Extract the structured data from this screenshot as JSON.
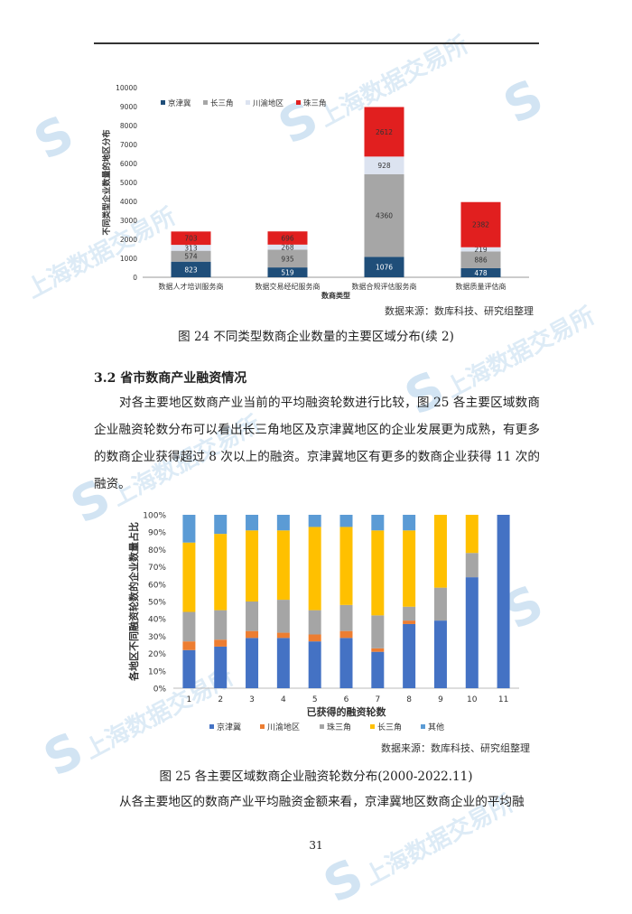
{
  "watermark": {
    "text": "上海数据交易所"
  },
  "chart24": {
    "chart_data": {
      "type": "bar",
      "stacked": true,
      "categories": [
        "数据人才培训服务商",
        "数据交易经纪服务商",
        "数据合规评估服务商",
        "数据质量评估商"
      ],
      "series": [
        {
          "name": "京津冀",
          "color": "#1f4e79",
          "values": [
            823,
            519,
            1076,
            478
          ]
        },
        {
          "name": "长三角",
          "color": "#a6a6a6",
          "values": [
            574,
            935,
            4360,
            886
          ]
        },
        {
          "name": "川渝地区",
          "color": "#dce3f0",
          "values": [
            313,
            268,
            928,
            219
          ]
        },
        {
          "name": "珠三角",
          "color": "#e11f1f",
          "values": [
            703,
            696,
            2612,
            2382
          ]
        }
      ],
      "ylabel": "不同类型企业数量的地区分布",
      "xlabel": "数商类型",
      "ylim": [
        0,
        10000
      ],
      "yticks": [
        "0",
        "1000",
        "2000",
        "3000",
        "4000",
        "5000",
        "6000",
        "7000",
        "8000",
        "9000",
        "10000"
      ],
      "legend_position": "top-left",
      "grid": false
    },
    "source": "数据来源：数库科技、研究组整理",
    "caption": "图 24  不同类型数商企业数量的主要区域分布(续 2)"
  },
  "section_title": "3.2  省市数商产业融资情况",
  "paragraph1": "对各主要地区数商产业当前的平均融资轮数进行比较，图 25 各主要区域数商企业融资轮数分布可以看出长三角地区及京津冀地区的企业发展更为成熟，有更多的数商企业获得超过 8 次以上的融资。京津冀地区有更多的数商企业获得 11 次的融资。",
  "chart25": {
    "chart_data": {
      "type": "bar",
      "stacked": true,
      "percent": true,
      "categories": [
        "1",
        "2",
        "3",
        "4",
        "5",
        "6",
        "7",
        "8",
        "9",
        "10",
        "11"
      ],
      "series": [
        {
          "name": "京津冀",
          "color": "#4472c4",
          "values": [
            22,
            24,
            29,
            29,
            27,
            29,
            21,
            37,
            39,
            64,
            100
          ]
        },
        {
          "name": "川渝地区",
          "color": "#ed7d31",
          "values": [
            5,
            4,
            4,
            3,
            4,
            4,
            2,
            2,
            0,
            0,
            0
          ]
        },
        {
          "name": "珠三角",
          "color": "#a5a5a5",
          "values": [
            17,
            17,
            17,
            19,
            14,
            15,
            19,
            8,
            19,
            14,
            0
          ]
        },
        {
          "name": "长三角",
          "color": "#ffc000",
          "values": [
            40,
            44,
            41,
            40,
            48,
            45,
            49,
            44,
            42,
            22,
            0
          ]
        },
        {
          "name": "其他",
          "color": "#5b9bd5",
          "values": [
            16,
            11,
            9,
            9,
            7,
            7,
            9,
            9,
            0,
            0,
            0
          ]
        }
      ],
      "ylabel": "各地区不同融资轮数的企业数量占比",
      "xlabel": "已获得的融资轮数",
      "ylim": [
        0,
        100
      ],
      "yticks": [
        "0%",
        "10%",
        "20%",
        "30%",
        "40%",
        "50%",
        "60%",
        "70%",
        "80%",
        "90%",
        "100%"
      ],
      "legend_position": "bottom",
      "grid": false
    },
    "source": "数据来源：数库科技、研究组整理",
    "caption": "图 25  各主要区域数商企业融资轮数分布(2000-2022.11)"
  },
  "paragraph2": "从各主要地区的数商产业平均融资金额来看，京津冀地区数商企业的平均融",
  "page_number": "31"
}
